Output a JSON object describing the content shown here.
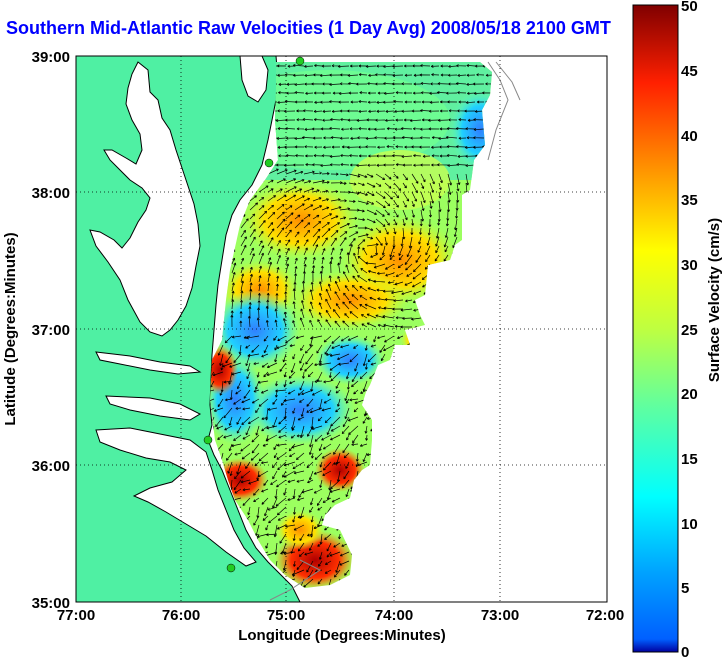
{
  "title": "Southern Mid-Atlantic Raw Velocities (1 Day Avg) 2008/05/18 2100 GMT",
  "x_axis": {
    "label": "Longitude (Degrees:Minutes)",
    "ticks": [
      "77:00",
      "76:00",
      "75:00",
      "74:00",
      "73:00",
      "72:00"
    ]
  },
  "y_axis": {
    "label": "Latitude (Degrees:Minutes)",
    "ticks": [
      "39:00",
      "38:00",
      "37:00",
      "36:00",
      "35:00"
    ]
  },
  "colorbar": {
    "label": "Surface Velocity (cm/s)",
    "ticks": [
      "50",
      "45",
      "40",
      "35",
      "30",
      "25",
      "20",
      "15",
      "10",
      "5",
      "0"
    ],
    "min": 0,
    "max": 50,
    "colormap": "jet"
  },
  "colors": {
    "land": "#4ff0a3",
    "water": "#ffffff",
    "title": "#0000ff",
    "gridline": "#000000",
    "station_marker": "#22cc22"
  }
}
